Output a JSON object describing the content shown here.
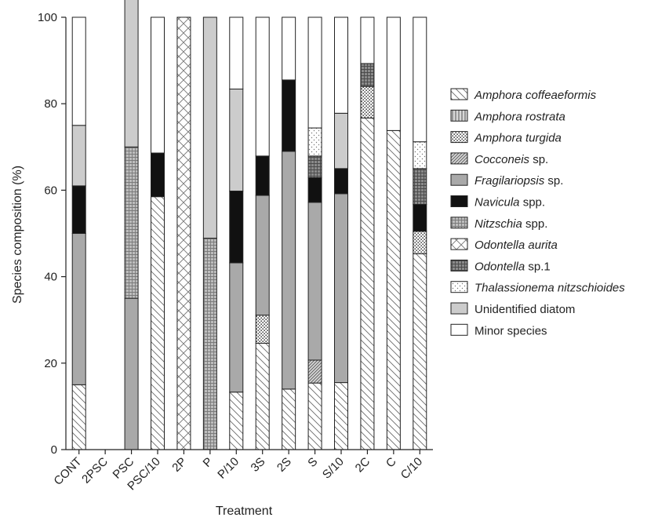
{
  "chart_data": {
    "type": "bar",
    "stacked": true,
    "xlabel": "Treatment",
    "ylabel": "Species composition (%)",
    "ylim": [
      0,
      100
    ],
    "yticks": [
      0,
      20,
      40,
      60,
      80,
      100
    ],
    "grid": false,
    "legend_position": "right",
    "categories": [
      "CONT",
      "2PSC",
      "PSC",
      "PSC/10",
      "2P",
      "P",
      "P/10",
      "3S",
      "2S",
      "S",
      "S/10",
      "2C",
      "C",
      "C/10"
    ],
    "series": [
      {
        "name": "Amphora coffeaeformis",
        "italic_part": "Amphora coffeaeformis",
        "plain_part": "",
        "pattern": "diag-light",
        "values": [
          15,
          0,
          0,
          58.5,
          0,
          0,
          13.3,
          24.6,
          14,
          15.4,
          15.5,
          76.7,
          73.8,
          45.3
        ]
      },
      {
        "name": "Amphora rostrata",
        "italic_part": "Amphora rostrata",
        "plain_part": "",
        "pattern": "vlines",
        "values": [
          0,
          0,
          0,
          0,
          0,
          0,
          0,
          0,
          0,
          0,
          0,
          0,
          0,
          0
        ]
      },
      {
        "name": "Amphora turgida",
        "italic_part": "Amphora turgida",
        "plain_part": "",
        "pattern": "dots",
        "values": [
          0,
          0,
          0,
          0,
          0,
          0,
          0,
          6.5,
          0,
          0,
          0,
          7.3,
          0,
          5.2
        ]
      },
      {
        "name": "Cocconeis sp.",
        "italic_part": "Cocconeis",
        "plain_part": " sp.",
        "pattern": "diag-dense",
        "values": [
          0,
          0,
          0,
          0,
          0,
          0,
          0,
          0,
          0,
          5.3,
          0,
          0,
          0,
          0
        ]
      },
      {
        "name": "Fragilariopsis sp.",
        "italic_part": "Fragilariopsis",
        "plain_part": " sp.",
        "pattern": "gray",
        "values": [
          35,
          0,
          35,
          0,
          0,
          0,
          29.9,
          27.7,
          55,
          36.5,
          43.7,
          0,
          0,
          0
        ]
      },
      {
        "name": "Navicula spp.",
        "italic_part": "Navicula",
        "plain_part": " spp.",
        "pattern": "black",
        "values": [
          11,
          0,
          0,
          10.1,
          0,
          0,
          16.6,
          9.1,
          16.5,
          5.7,
          5.8,
          0,
          0,
          6.2
        ]
      },
      {
        "name": "Nitzschia spp.",
        "italic_part": "Nitzschia",
        "plain_part": " spp.",
        "pattern": "grid",
        "values": [
          0,
          0,
          35,
          0,
          0,
          48.9,
          0,
          0,
          0,
          0,
          0,
          0,
          0,
          0
        ]
      },
      {
        "name": "Odontella aurita",
        "italic_part": "Odontella aurita",
        "plain_part": "",
        "pattern": "cross",
        "values": [
          0,
          0,
          0,
          0,
          100,
          0,
          0,
          0,
          0,
          0,
          0,
          0,
          0,
          0
        ]
      },
      {
        "name": "Odontella sp.1",
        "italic_part": "Odontella",
        "plain_part": " sp.1",
        "pattern": "darkgrid",
        "values": [
          0,
          0,
          0,
          0,
          0,
          0,
          0,
          0,
          0,
          5,
          0,
          5.3,
          0,
          8.3
        ]
      },
      {
        "name": "Thalassionema nitzschioides",
        "italic_part": "Thalassionema nitzschioides",
        "plain_part": "",
        "pattern": "sparse-dots",
        "values": [
          0,
          0,
          0,
          0,
          0,
          0,
          0,
          0,
          0,
          6.5,
          0,
          0,
          0,
          6.2
        ]
      },
      {
        "name": "Unidentified diatom",
        "italic_part": "",
        "plain_part": "Unidentified diatom",
        "pattern": "lightgray",
        "values": [
          14,
          0,
          35,
          0,
          0,
          51.1,
          23.6,
          0,
          0,
          0,
          12.8,
          0,
          0,
          0
        ]
      },
      {
        "name": "Minor species",
        "italic_part": "",
        "plain_part": "Minor species",
        "pattern": "white",
        "values": [
          25,
          0,
          0,
          31.4,
          0,
          0,
          16.6,
          32.1,
          14.5,
          25.6,
          22.2,
          10.7,
          26.2,
          28.8
        ]
      }
    ]
  }
}
